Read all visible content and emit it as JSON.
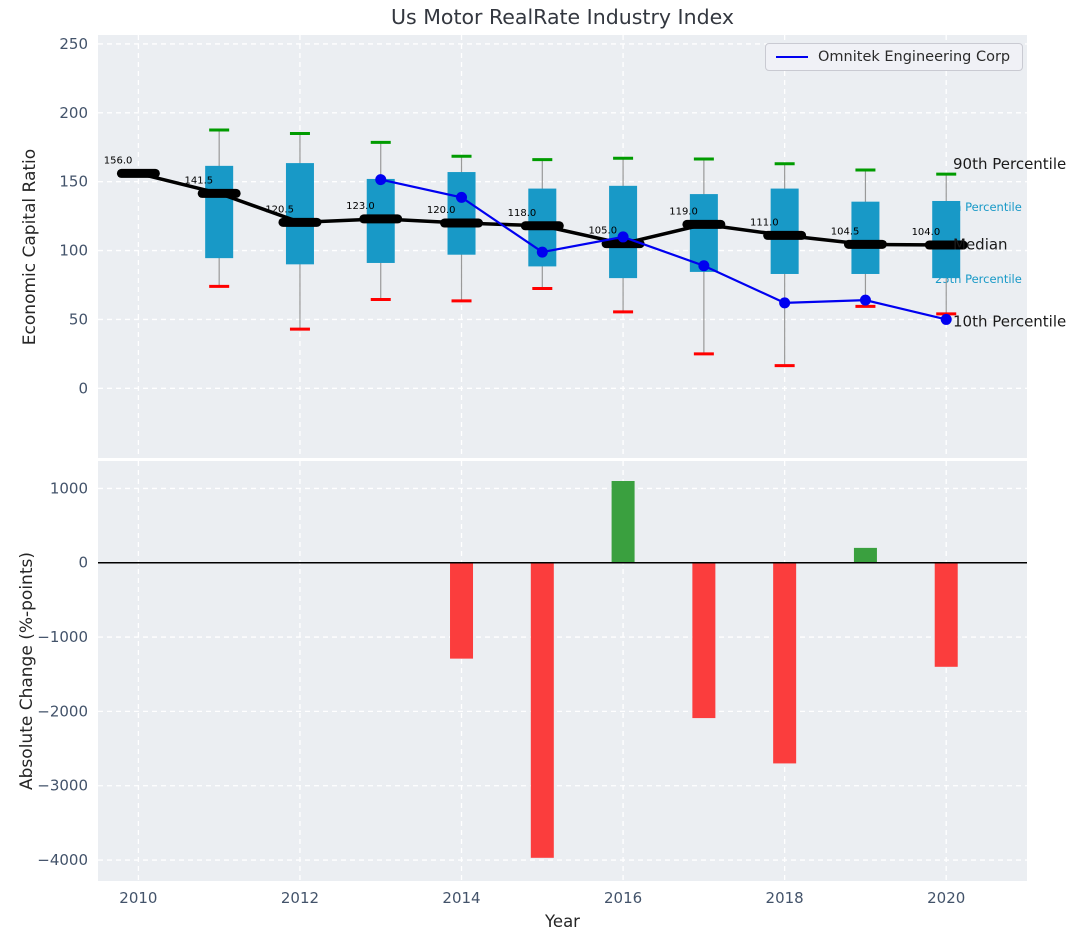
{
  "title": "Us Motor RealRate Industry Index",
  "legend": {
    "label": "Omnitek Engineering Corp"
  },
  "colors": {
    "box": "#1899c7",
    "whisker": "#999999",
    "cap_top": "#009b00",
    "cap_bottom": "#ff0000",
    "median": "#000000",
    "company_line": "#0000f0",
    "bar_positive": "#3aa03f",
    "bar_negative": "#fb3d3d",
    "plot_bg": "#ebeef2",
    "grid": "#ffffff",
    "tick_text": "#43536a",
    "label_text": "#1a1a1a",
    "percentile_label_cyan": "#1899c7"
  },
  "chart_data": [
    {
      "type": "boxplot_line",
      "title": "Us Motor RealRate Industry Index",
      "ylabel": "Economic Capital Ratio",
      "yticks": [
        0,
        50,
        100,
        150,
        200,
        250
      ],
      "ylim": [
        -50.6,
        256.5
      ],
      "xlim": [
        2009.5,
        2021
      ],
      "xgrid_years": [
        2010,
        2012,
        2014,
        2016,
        2018,
        2020
      ],
      "grid": true,
      "legend_position": "upper right",
      "boxes": [
        {
          "year": 2010,
          "p90": null,
          "p75": null,
          "median": 156.0,
          "p25": null,
          "p10": null,
          "median_label": "156.0"
        },
        {
          "year": 2011,
          "p90": 187.5,
          "p75": 161.5,
          "median": 141.5,
          "p25": 94.5,
          "p10": 74.0,
          "median_label": "141.5"
        },
        {
          "year": 2012,
          "p90": 185.0,
          "p75": 163.5,
          "median": 120.5,
          "p25": 90.0,
          "p10": 43.0,
          "median_label": "120.5"
        },
        {
          "year": 2013,
          "p90": 178.5,
          "p75": 152.0,
          "median": 123.0,
          "p25": 91.0,
          "p10": 64.5,
          "median_label": "123.0"
        },
        {
          "year": 2014,
          "p90": 168.5,
          "p75": 157.0,
          "median": 120.0,
          "p25": 97.0,
          "p10": 63.5,
          "median_label": "120.0"
        },
        {
          "year": 2015,
          "p90": 166.0,
          "p75": 145.0,
          "median": 118.0,
          "p25": 88.5,
          "p10": 72.5,
          "median_label": "118.0"
        },
        {
          "year": 2016,
          "p90": 167.0,
          "p75": 147.0,
          "median": 105.0,
          "p25": 80.0,
          "p10": 55.5,
          "median_label": "105.0"
        },
        {
          "year": 2017,
          "p90": 166.5,
          "p75": 141.0,
          "median": 119.0,
          "p25": 84.5,
          "p10": 25.0,
          "median_label": "119.0"
        },
        {
          "year": 2018,
          "p90": 163.0,
          "p75": 145.0,
          "median": 111.0,
          "p25": 83.0,
          "p10": 16.5,
          "median_label": "111.0"
        },
        {
          "year": 2019,
          "p90": 158.5,
          "p75": 135.5,
          "median": 104.5,
          "p25": 83.0,
          "p10": 59.5,
          "median_label": "104.5"
        },
        {
          "year": 2020,
          "p90": 155.5,
          "p75": 136.0,
          "median": 104.0,
          "p25": 80.0,
          "p10": 54.0,
          "median_label": "104.0"
        }
      ],
      "company_line": {
        "name": "Omnitek Engineering Corp",
        "points": [
          {
            "year": 2013,
            "value": 151.5
          },
          {
            "year": 2014,
            "value": 138.6
          },
          {
            "year": 2015,
            "value": 98.9
          },
          {
            "year": 2016,
            "value": 109.9
          },
          {
            "year": 2017,
            "value": 89.0
          },
          {
            "year": 2018,
            "value": 62.0
          },
          {
            "year": 2019,
            "value": 64.0
          },
          {
            "year": 2020,
            "value": 50.0
          }
        ]
      },
      "right_labels": [
        {
          "text": "90th Percentile",
          "at_value": 163.0,
          "variant": "major"
        },
        {
          "text": "75th Percentile",
          "at_value": 131.5,
          "variant": "minor"
        },
        {
          "text": "Median",
          "at_value": 104.3,
          "variant": "major"
        },
        {
          "text": "25th Percentile",
          "at_value": 79.5,
          "variant": "minor"
        },
        {
          "text": "10th Percentile",
          "at_value": 48.5,
          "variant": "major"
        }
      ]
    },
    {
      "type": "bar",
      "ylabel": "Absolute Change (%-points)",
      "xlabel": "Year",
      "yticks": [
        1000,
        0,
        -1000,
        -2000,
        -3000,
        -4000
      ],
      "ylim": [
        -4282,
        1369
      ],
      "xlim": [
        2009.5,
        2021
      ],
      "xticks": [
        2010,
        2012,
        2014,
        2016,
        2018,
        2020
      ],
      "zero_line": true,
      "bars": [
        {
          "year": 2014,
          "value": -1290
        },
        {
          "year": 2015,
          "value": -3970
        },
        {
          "year": 2016,
          "value": 1100
        },
        {
          "year": 2017,
          "value": -2090
        },
        {
          "year": 2018,
          "value": -2700
        },
        {
          "year": 2019,
          "value": 200
        },
        {
          "year": 2020,
          "value": -1400
        }
      ]
    }
  ]
}
